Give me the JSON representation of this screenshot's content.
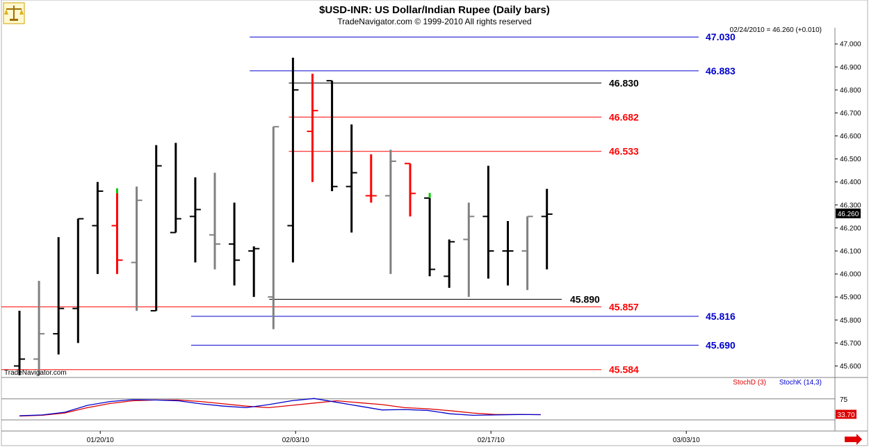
{
  "header": {
    "title": "$USD-INR:  US Dollar/Indian Rupee  (Daily bars)",
    "subtitle": "TradeNavigator.com © 1999-2010 All rights reserved",
    "last_quote": "02/24/2010 = 46.260 (+0.010)",
    "watermark": "TradeNavigator.com",
    "logo_icon": "scales-icon",
    "scroll_icon": "right-arrow-icon"
  },
  "colors": {
    "up_bar": "#000000",
    "neutral_bar": "#808080",
    "down_bar": "#ff0000",
    "blue_level": "#0000cc",
    "red_level": "#ff0000",
    "black_level": "#000000",
    "stoch_d": "#dd0000",
    "stoch_k": "#0000cc",
    "highlight_tick": "#00cc00"
  },
  "chart_data": [
    {
      "type": "ohlc",
      "title": "$USD-INR:  US Dollar/Indian Rupee  (Daily bars)",
      "y_axis_side": "right",
      "ylim": [
        45.55,
        47.07
      ],
      "yticks": [
        "47.000",
        "46.900",
        "46.800",
        "46.700",
        "46.600",
        "46.500",
        "46.400",
        "46.300",
        "46.200",
        "46.100",
        "46.000",
        "45.900",
        "45.800",
        "45.700",
        "45.600"
      ],
      "last_price_label": "46.260",
      "xticks": [
        {
          "label": "01/20/10",
          "bar": 2
        },
        {
          "label": "02/03/10",
          "bar": 12
        },
        {
          "label": "02/17/10",
          "bar": 22
        },
        {
          "label": "03/03/10",
          "bar": 32
        }
      ],
      "bars": [
        {
          "o": 45.6,
          "h": 45.84,
          "l": 45.56,
          "c": 45.63,
          "color": "up"
        },
        {
          "o": 45.63,
          "h": 45.97,
          "l": 45.56,
          "c": 45.74,
          "color": "neutral"
        },
        {
          "o": 45.74,
          "h": 46.16,
          "l": 45.65,
          "c": 45.85,
          "color": "up"
        },
        {
          "o": 45.85,
          "h": 46.24,
          "l": 45.7,
          "c": 46.24,
          "color": "up"
        },
        {
          "o": 46.21,
          "h": 46.4,
          "l": 46.0,
          "c": 46.36,
          "color": "up"
        },
        {
          "o": 46.21,
          "h": 46.36,
          "l": 46.0,
          "c": 46.06,
          "color": "down"
        },
        {
          "o": 46.05,
          "h": 46.38,
          "l": 45.84,
          "c": 46.32,
          "color": "neutral"
        },
        {
          "o": 45.84,
          "h": 46.56,
          "l": 45.84,
          "c": 46.47,
          "color": "up"
        },
        {
          "o": 46.18,
          "h": 46.57,
          "l": 46.18,
          "c": 46.24,
          "color": "up"
        },
        {
          "o": 46.25,
          "h": 46.42,
          "l": 46.05,
          "c": 46.28,
          "color": "up"
        },
        {
          "o": 46.17,
          "h": 46.44,
          "l": 46.02,
          "c": 46.13,
          "color": "neutral"
        },
        {
          "o": 46.13,
          "h": 46.31,
          "l": 45.95,
          "c": 46.06,
          "color": "up"
        },
        {
          "o": 46.1,
          "h": 46.12,
          "l": 45.9,
          "c": 46.11,
          "color": "up"
        },
        {
          "o": 45.9,
          "h": 46.64,
          "l": 45.76,
          "c": 46.64,
          "color": "neutral"
        },
        {
          "o": 46.21,
          "h": 46.94,
          "l": 46.05,
          "c": 46.8,
          "color": "up"
        },
        {
          "o": 46.62,
          "h": 46.87,
          "l": 46.4,
          "c": 46.71,
          "color": "down"
        },
        {
          "o": 46.84,
          "h": 46.84,
          "l": 46.36,
          "c": 46.38,
          "color": "up"
        },
        {
          "o": 46.38,
          "h": 46.65,
          "l": 46.18,
          "c": 46.44,
          "color": "up"
        },
        {
          "o": 46.34,
          "h": 46.52,
          "l": 46.31,
          "c": 46.34,
          "color": "down"
        },
        {
          "o": 46.34,
          "h": 46.54,
          "l": 46.0,
          "c": 46.49,
          "color": "neutral"
        },
        {
          "o": 46.48,
          "h": 46.48,
          "l": 46.25,
          "c": 46.35,
          "color": "down"
        },
        {
          "o": 46.33,
          "h": 46.33,
          "l": 45.99,
          "c": 46.02,
          "color": "up"
        },
        {
          "o": 45.99,
          "h": 46.15,
          "l": 45.94,
          "c": 46.14,
          "color": "up"
        },
        {
          "o": 46.15,
          "h": 46.31,
          "l": 45.9,
          "c": 46.25,
          "color": "neutral"
        },
        {
          "o": 46.25,
          "h": 46.47,
          "l": 45.98,
          "c": 46.1,
          "color": "up"
        },
        {
          "o": 46.1,
          "h": 46.23,
          "l": 45.95,
          "c": 46.1,
          "color": "up"
        },
        {
          "o": 46.1,
          "h": 46.25,
          "l": 45.93,
          "c": 46.25,
          "color": "neutral"
        },
        {
          "o": 46.25,
          "h": 46.37,
          "l": 46.02,
          "c": 46.26,
          "color": "up"
        }
      ],
      "highlight_ticks": [
        {
          "bar": 5,
          "price": 46.36
        },
        {
          "bar": 21,
          "price": 46.34
        }
      ],
      "levels": [
        {
          "value": 47.03,
          "label": "47.030",
          "color": "blue",
          "from_bar": 12
        },
        {
          "value": 46.883,
          "label": "46.883",
          "color": "blue",
          "from_bar": 12
        },
        {
          "value": 46.83,
          "label": "46.830",
          "color": "black",
          "from_bar": 14
        },
        {
          "value": 46.682,
          "label": "46.682",
          "color": "red",
          "from_bar": 14
        },
        {
          "value": 46.533,
          "label": "46.533",
          "color": "red",
          "from_bar": 14
        },
        {
          "value": 45.89,
          "label": "45.890",
          "color": "black",
          "from_bar": 13
        },
        {
          "value": 45.857,
          "label": "45.857",
          "color": "red",
          "from_bar": 0
        },
        {
          "value": 45.816,
          "label": "45.816",
          "color": "blue",
          "from_bar": 9
        },
        {
          "value": 45.69,
          "label": "45.690",
          "color": "blue",
          "from_bar": 9
        },
        {
          "value": 45.584,
          "label": "45.584",
          "color": "red",
          "from_bar": 0
        }
      ]
    },
    {
      "type": "line",
      "title": "",
      "legend": [
        "StochD (3)",
        "StochK (14,3)"
      ],
      "ylim": [
        0,
        100
      ],
      "reference_line": 75,
      "tick_label": "75",
      "last_value_label": "33.70",
      "series": [
        {
          "name": "StochD (3)",
          "color": "stoch_d",
          "values": [
            30,
            32,
            38,
            52,
            63,
            70,
            72,
            72,
            68,
            62,
            56,
            52,
            58,
            64,
            70,
            65,
            60,
            52,
            49,
            44,
            38,
            34,
            34,
            33.7
          ]
        },
        {
          "name": "StochK (14,3)",
          "color": "stoch_k",
          "values": [
            31,
            33,
            40,
            58,
            68,
            73,
            72,
            70,
            62,
            56,
            52,
            60,
            70,
            76,
            66,
            56,
            46,
            47,
            45,
            36,
            32,
            33,
            34,
            33.7
          ]
        }
      ]
    }
  ]
}
